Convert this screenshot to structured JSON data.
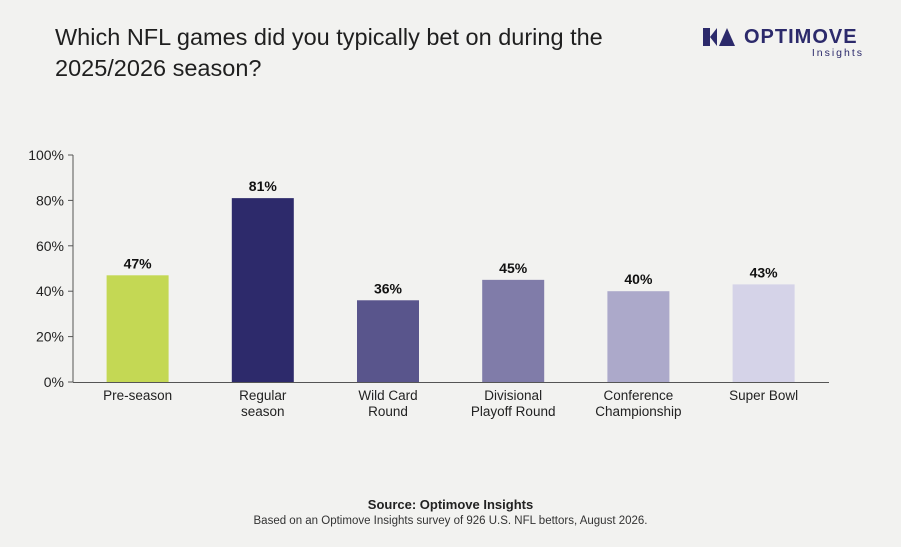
{
  "title": "Which NFL games did you typically bet on during the 2025/2026 season?",
  "brand": {
    "name": "OPTIMOVE",
    "sub": "Insights",
    "logo_icon": "optimove-logo-icon",
    "color": "#2c2a6b"
  },
  "footer": {
    "source": "Source: Optimove Insights",
    "note": "Based on an Optimove Insights survey of 926 U.S. NFL bettors, August 2026."
  },
  "chart_data": {
    "type": "bar",
    "title": "Which NFL games did you typically bet on during the 2025/2026 season?",
    "xlabel": "",
    "ylabel": "",
    "ylim": [
      0,
      100
    ],
    "yticks": [
      0,
      20,
      40,
      60,
      80,
      100
    ],
    "ytick_labels": [
      "0%",
      "20%",
      "40%",
      "60%",
      "80%",
      "100%"
    ],
    "grid": false,
    "legend": "none",
    "categories": [
      [
        "Pre-season"
      ],
      [
        "Regular",
        "season"
      ],
      [
        "Wild Card",
        "Round"
      ],
      [
        "Divisional",
        "Playoff Round"
      ],
      [
        "Conference",
        "Championship"
      ],
      [
        "Super Bowl"
      ]
    ],
    "values": [
      47,
      81,
      36,
      45,
      40,
      43
    ],
    "value_labels": [
      "47%",
      "81%",
      "36%",
      "45%",
      "40%",
      "43%"
    ],
    "colors": [
      "#c4d854",
      "#2d2a6b",
      "#59558c",
      "#807ca9",
      "#aca9ca",
      "#d5d3e8"
    ]
  }
}
